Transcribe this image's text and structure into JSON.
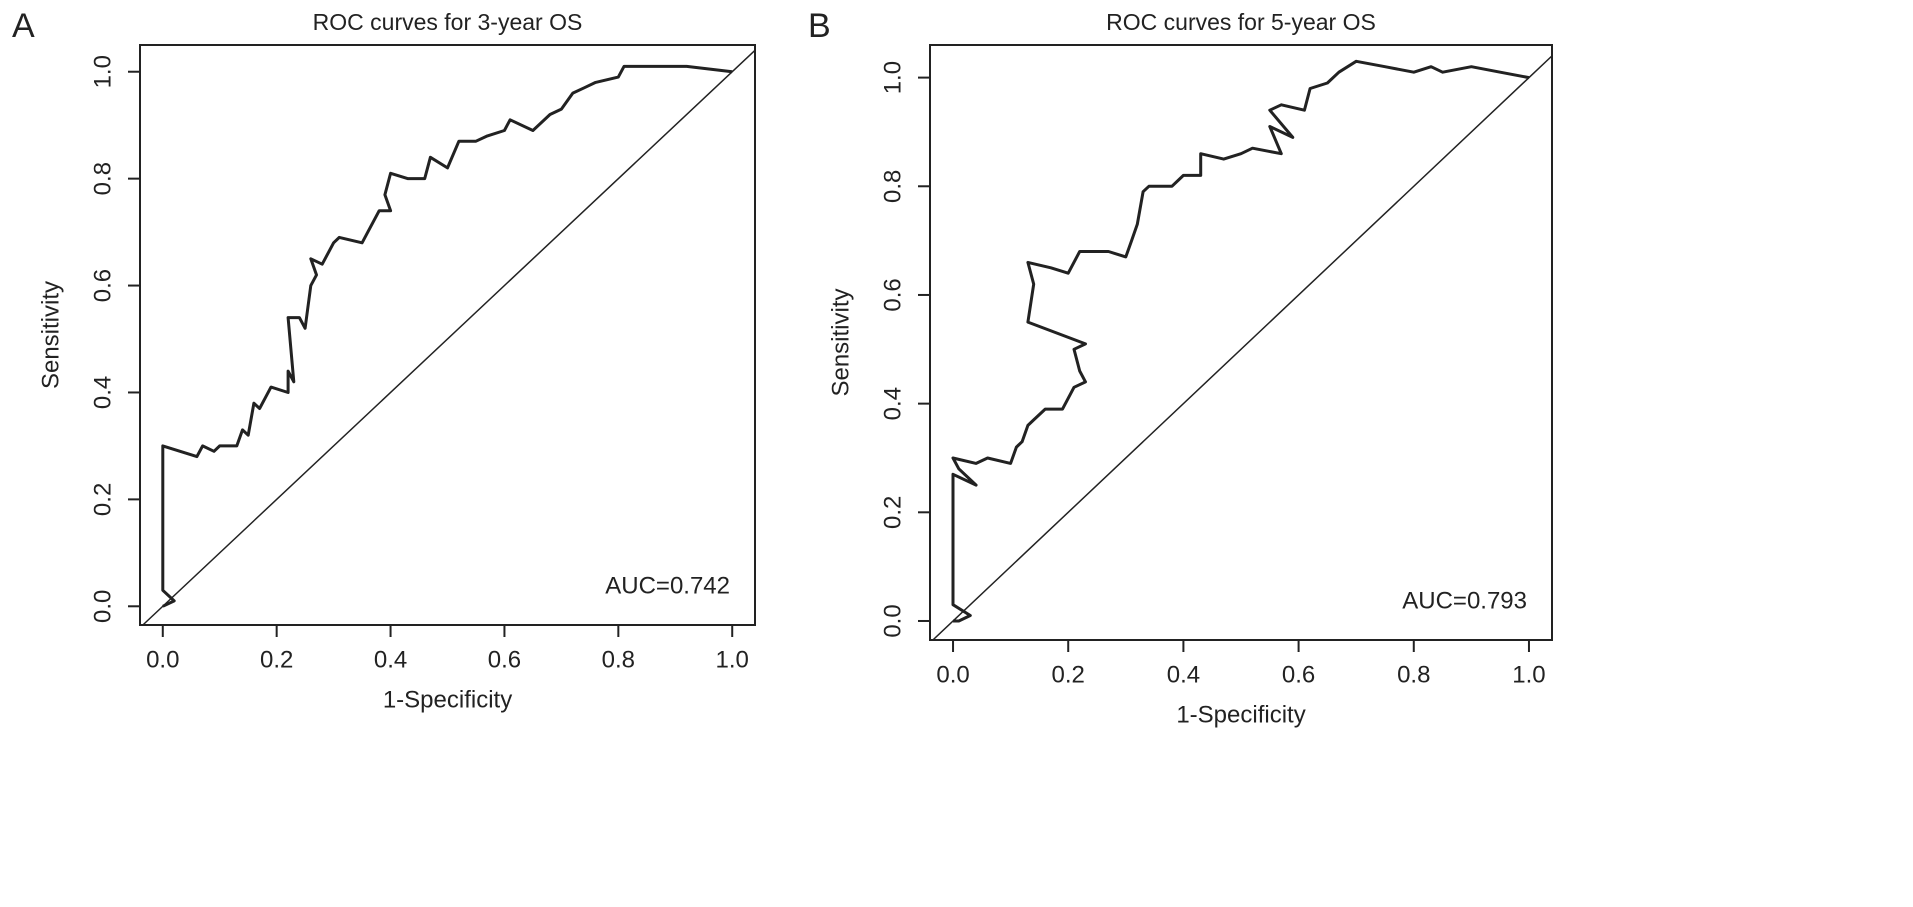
{
  "chart_data": [
    {
      "type": "line",
      "panel_label": "A",
      "title": "ROC curves for 3-year OS",
      "x_label": "1-Specificity",
      "y_label": "Sensitivity",
      "annotation": "AUC=0.742",
      "color": "#222222",
      "x": [
        0,
        0.02,
        0,
        0,
        0.06,
        0.07,
        0.09,
        0.1,
        0.13,
        0.14,
        0.15,
        0.16,
        0.17,
        0.18,
        0.19,
        0.22,
        0.22,
        0.23,
        0.22,
        0.24,
        0.25,
        0.26,
        0.27,
        0.26,
        0.28,
        0.3,
        0.31,
        0.35,
        0.36,
        0.38,
        0.4,
        0.39,
        0.4,
        0.43,
        0.46,
        0.47,
        0.5,
        0.52,
        0.55,
        0.57,
        0.6,
        0.61,
        0.65,
        0.68,
        0.7,
        0.72,
        0.74,
        0.76,
        0.8,
        0.81,
        0.84,
        0.88,
        0.92,
        1
      ],
      "values": [
        0,
        0.01,
        0.03,
        0.3,
        0.28,
        0.3,
        0.29,
        0.3,
        0.3,
        0.33,
        0.32,
        0.38,
        0.37,
        0.39,
        0.41,
        0.4,
        0.44,
        0.42,
        0.54,
        0.54,
        0.52,
        0.6,
        0.62,
        0.65,
        0.64,
        0.68,
        0.69,
        0.68,
        0.7,
        0.74,
        0.74,
        0.77,
        0.81,
        0.8,
        0.8,
        0.84,
        0.82,
        0.87,
        0.87,
        0.88,
        0.89,
        0.91,
        0.89,
        0.92,
        0.93,
        0.96,
        0.97,
        0.98,
        0.99,
        1.01,
        1.01,
        1.01,
        1.01,
        1
      ],
      "xlim": [
        -0.04,
        1.04
      ],
      "ylim": [
        -0.035,
        1.05
      ],
      "xticks": [
        {
          "value": 0,
          "label": "0.0"
        },
        0.2,
        0.4,
        0.6,
        0.8,
        {
          "value": 1,
          "label": "1.0"
        }
      ],
      "yticks": [
        {
          "value": 0,
          "label": "0.0"
        },
        0.2,
        0.4,
        0.6,
        0.8,
        {
          "value": 1,
          "label": "1.0"
        }
      ]
    },
    {
      "type": "line",
      "panel_label": "B",
      "title": "ROC curves for 5-year OS",
      "x_label": "1-Specificity",
      "y_label": "Sensitivity",
      "annotation": "AUC=0.793",
      "color": "#222222",
      "x": [
        0,
        0.01,
        0.03,
        0,
        0,
        0.04,
        0.01,
        0,
        0.04,
        0.06,
        0.1,
        0.11,
        0.12,
        0.13,
        0.14,
        0.16,
        0.19,
        0.21,
        0.23,
        0.22,
        0.21,
        0.23,
        0.13,
        0.14,
        0.13,
        0.17,
        0.2,
        0.22,
        0.27,
        0.3,
        0.31,
        0.32,
        0.33,
        0.34,
        0.38,
        0.4,
        0.43,
        0.43,
        0.47,
        0.5,
        0.52,
        0.57,
        0.55,
        0.59,
        0.55,
        0.57,
        0.61,
        0.62,
        0.65,
        0.67,
        0.7,
        0.75,
        0.8,
        0.83,
        0.85,
        0.9,
        0.95,
        1
      ],
      "values": [
        0,
        0,
        0.01,
        0.03,
        0.27,
        0.25,
        0.28,
        0.3,
        0.29,
        0.3,
        0.29,
        0.32,
        0.33,
        0.36,
        0.37,
        0.39,
        0.39,
        0.43,
        0.44,
        0.46,
        0.5,
        0.51,
        0.55,
        0.62,
        0.66,
        0.65,
        0.64,
        0.68,
        0.68,
        0.67,
        0.7,
        0.73,
        0.79,
        0.8,
        0.8,
        0.82,
        0.82,
        0.86,
        0.85,
        0.86,
        0.87,
        0.86,
        0.91,
        0.89,
        0.94,
        0.95,
        0.94,
        0.98,
        0.99,
        1.01,
        1.03,
        1.02,
        1.01,
        1.02,
        1.01,
        1.02,
        1.01,
        1
      ],
      "xlim": [
        -0.04,
        1.04
      ],
      "ylim": [
        -0.035,
        1.06
      ],
      "xticks": [
        {
          "value": 0,
          "label": "0.0"
        },
        0.2,
        0.4,
        0.6,
        0.8,
        {
          "value": 1,
          "label": "1.0"
        }
      ],
      "yticks": [
        {
          "value": 0,
          "label": "0.0"
        },
        0.2,
        0.4,
        0.6,
        0.8,
        {
          "value": 1,
          "label": "1.0"
        }
      ]
    }
  ]
}
